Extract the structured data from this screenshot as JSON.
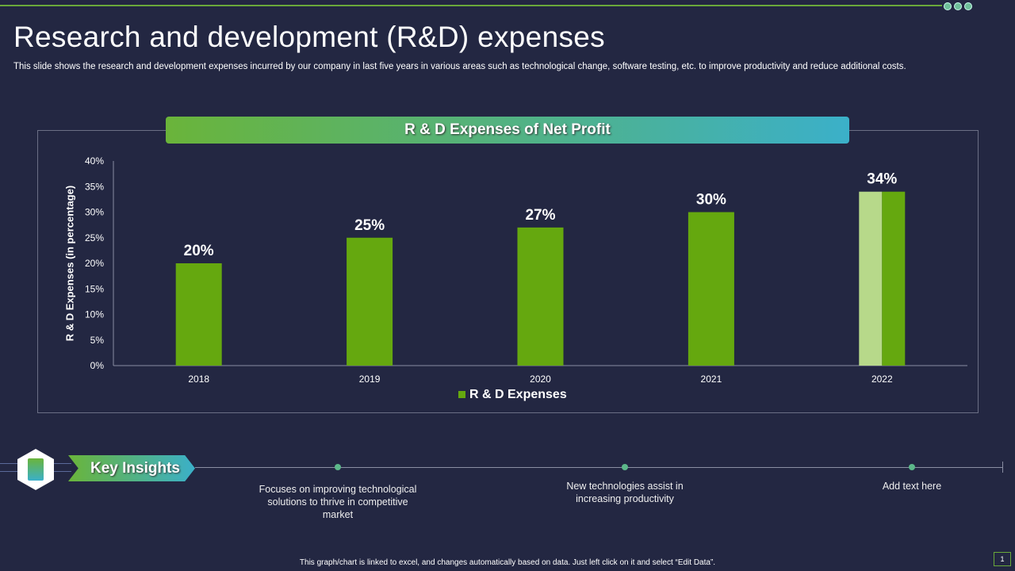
{
  "title": "Research and development (R&D) expenses",
  "subtitle": "This slide shows the research and development expenses incurred by our company in last five years in various areas such as technological change, software testing, etc. to improve productivity and reduce additional costs.",
  "chart_data": {
    "type": "bar",
    "title": "R & D Expenses of Net Profit",
    "ylabel": "R & D Expenses (in percentage)",
    "xlabel": "",
    "categories": [
      "2018",
      "2019",
      "2020",
      "2021",
      "2022"
    ],
    "series": [
      {
        "name": "R & D Expenses",
        "values": [
          20,
          25,
          27,
          30,
          34
        ]
      }
    ],
    "data_labels": [
      "20%",
      "25%",
      "27%",
      "30%",
      "34%"
    ],
    "yticks": [
      "0%",
      "5%",
      "10%",
      "15%",
      "20%",
      "25%",
      "30%",
      "35%",
      "40%"
    ],
    "ylim": [
      0,
      40
    ],
    "grid": false,
    "legend": "bottom",
    "colors": {
      "bar": "#65a80f",
      "highlight": "#b7d98a"
    }
  },
  "insights": {
    "label": "Key Insights",
    "icon": "clipboard-checklist-icon",
    "items": [
      "Focuses on improving technological solutions to thrive in competitive market",
      "New technologies assist in increasing productivity",
      "Add text here"
    ]
  },
  "footer": "This graph/chart is linked to excel, and changes automatically based on data. Just left click on it and select “Edit Data”.",
  "page_number": "1"
}
